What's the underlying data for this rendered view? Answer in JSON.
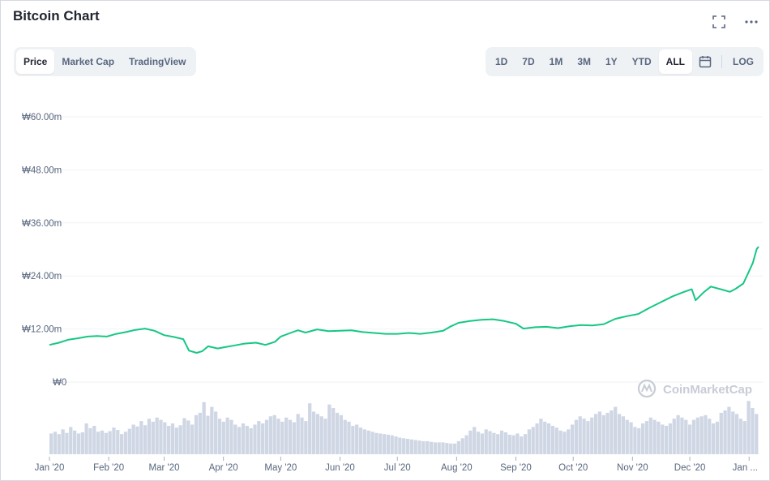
{
  "header": {
    "title": "Bitcoin Chart"
  },
  "icons": {
    "fullscreen": "fullscreen-icon",
    "more": "more-icon",
    "calendar": "calendar-icon",
    "watermark": "coinmarketcap-logo-icon"
  },
  "chart_tabs": [
    {
      "label": "Price",
      "active": true
    },
    {
      "label": "Market Cap",
      "active": false
    },
    {
      "label": "TradingView",
      "active": false
    }
  ],
  "ranges": [
    {
      "label": "1D",
      "active": false
    },
    {
      "label": "7D",
      "active": false
    },
    {
      "label": "1M",
      "active": false
    },
    {
      "label": "3M",
      "active": false
    },
    {
      "label": "1Y",
      "active": false
    },
    {
      "label": "YTD",
      "active": false
    },
    {
      "label": "ALL",
      "active": true
    }
  ],
  "log_label": "LOG",
  "watermark": "CoinMarketCap",
  "colors": {
    "line": "#16c784",
    "volume": "#cfd6e4",
    "grid": "#eff2f5",
    "text": "#58667e"
  },
  "chart_data": {
    "type": "line",
    "title": "",
    "ylabel": "",
    "ylim": [
      0,
      60
    ],
    "yticks": [
      "₩0",
      "₩12.00m",
      "₩24.00m",
      "₩36.00m",
      "₩48.00m",
      "₩60.00m"
    ],
    "ytick_values": [
      0,
      12,
      24,
      36,
      48,
      60
    ],
    "xticks": [
      "Jan '20",
      "Feb '20",
      "Mar '20",
      "Apr '20",
      "May '20",
      "Jun '20",
      "Jul '20",
      "Aug '20",
      "Sep '20",
      "Oct '20",
      "Nov '20",
      "Dec '20",
      "Jan ..."
    ],
    "xtick_days": [
      0,
      31,
      60,
      91,
      121,
      152,
      182,
      213,
      244,
      274,
      305,
      335,
      366
    ],
    "x_end_day": 371,
    "price_series": {
      "name": "Price (KRW, millions)",
      "points": [
        [
          0,
          8.4
        ],
        [
          5,
          8.9
        ],
        [
          10,
          9.6
        ],
        [
          15,
          9.9
        ],
        [
          20,
          10.3
        ],
        [
          25,
          10.4
        ],
        [
          30,
          10.3
        ],
        [
          35,
          10.9
        ],
        [
          40,
          11.3
        ],
        [
          45,
          11.8
        ],
        [
          50,
          12.1
        ],
        [
          55,
          11.6
        ],
        [
          60,
          10.6
        ],
        [
          65,
          10.2
        ],
        [
          70,
          9.7
        ],
        [
          73,
          7.1
        ],
        [
          77,
          6.6
        ],
        [
          80,
          7.0
        ],
        [
          83,
          8.1
        ],
        [
          88,
          7.6
        ],
        [
          92,
          7.9
        ],
        [
          97,
          8.3
        ],
        [
          102,
          8.7
        ],
        [
          108,
          8.9
        ],
        [
          113,
          8.4
        ],
        [
          118,
          9.1
        ],
        [
          121,
          10.3
        ],
        [
          126,
          11.1
        ],
        [
          130,
          11.7
        ],
        [
          134,
          11.2
        ],
        [
          140,
          11.9
        ],
        [
          146,
          11.5
        ],
        [
          152,
          11.6
        ],
        [
          158,
          11.7
        ],
        [
          164,
          11.3
        ],
        [
          170,
          11.1
        ],
        [
          176,
          10.9
        ],
        [
          182,
          10.9
        ],
        [
          188,
          11.1
        ],
        [
          194,
          10.9
        ],
        [
          200,
          11.2
        ],
        [
          206,
          11.6
        ],
        [
          210,
          12.6
        ],
        [
          214,
          13.4
        ],
        [
          220,
          13.8
        ],
        [
          226,
          14.1
        ],
        [
          232,
          14.2
        ],
        [
          238,
          13.8
        ],
        [
          244,
          13.2
        ],
        [
          248,
          12.1
        ],
        [
          254,
          12.4
        ],
        [
          260,
          12.5
        ],
        [
          266,
          12.2
        ],
        [
          272,
          12.6
        ],
        [
          278,
          12.9
        ],
        [
          284,
          12.8
        ],
        [
          290,
          13.1
        ],
        [
          296,
          14.3
        ],
        [
          302,
          14.9
        ],
        [
          308,
          15.4
        ],
        [
          314,
          16.8
        ],
        [
          320,
          18.1
        ],
        [
          326,
          19.4
        ],
        [
          332,
          20.4
        ],
        [
          336,
          21.0
        ],
        [
          338,
          18.5
        ],
        [
          342,
          20.2
        ],
        [
          346,
          21.6
        ],
        [
          352,
          20.9
        ],
        [
          356,
          20.4
        ],
        [
          359,
          21.1
        ],
        [
          363,
          22.3
        ],
        [
          366,
          25.1
        ],
        [
          368,
          27.0
        ],
        [
          370,
          30.1
        ],
        [
          371,
          30.6
        ]
      ]
    },
    "volume_series": {
      "name": "Volume (relative)",
      "values": [
        0.35,
        0.38,
        0.34,
        0.42,
        0.36,
        0.46,
        0.4,
        0.35,
        0.37,
        0.52,
        0.44,
        0.48,
        0.38,
        0.4,
        0.36,
        0.39,
        0.45,
        0.41,
        0.34,
        0.38,
        0.43,
        0.5,
        0.47,
        0.56,
        0.49,
        0.6,
        0.55,
        0.62,
        0.58,
        0.54,
        0.48,
        0.52,
        0.45,
        0.49,
        0.61,
        0.57,
        0.5,
        0.66,
        0.7,
        0.88,
        0.65,
        0.8,
        0.72,
        0.6,
        0.55,
        0.62,
        0.58,
        0.5,
        0.46,
        0.52,
        0.48,
        0.44,
        0.5,
        0.56,
        0.52,
        0.58,
        0.64,
        0.66,
        0.6,
        0.55,
        0.62,
        0.58,
        0.54,
        0.68,
        0.62,
        0.56,
        0.86,
        0.72,
        0.68,
        0.64,
        0.6,
        0.84,
        0.78,
        0.7,
        0.66,
        0.58,
        0.55,
        0.48,
        0.5,
        0.45,
        0.42,
        0.4,
        0.38,
        0.36,
        0.35,
        0.34,
        0.33,
        0.32,
        0.3,
        0.28,
        0.27,
        0.26,
        0.25,
        0.24,
        0.23,
        0.22,
        0.22,
        0.21,
        0.2,
        0.2,
        0.2,
        0.19,
        0.18,
        0.18,
        0.22,
        0.27,
        0.32,
        0.4,
        0.46,
        0.38,
        0.35,
        0.42,
        0.39,
        0.36,
        0.34,
        0.4,
        0.37,
        0.33,
        0.32,
        0.35,
        0.3,
        0.34,
        0.42,
        0.46,
        0.52,
        0.6,
        0.55,
        0.52,
        0.48,
        0.45,
        0.4,
        0.38,
        0.42,
        0.5,
        0.58,
        0.64,
        0.6,
        0.56,
        0.62,
        0.68,
        0.72,
        0.66,
        0.7,
        0.74,
        0.8,
        0.68,
        0.64,
        0.58,
        0.54,
        0.46,
        0.44,
        0.52,
        0.56,
        0.62,
        0.58,
        0.55,
        0.5,
        0.48,
        0.52,
        0.6,
        0.66,
        0.62,
        0.58,
        0.5,
        0.58,
        0.62,
        0.64,
        0.66,
        0.6,
        0.52,
        0.55,
        0.7,
        0.74,
        0.8,
        0.72,
        0.68,
        0.6,
        0.56,
        0.9,
        0.78,
        0.68
      ]
    }
  }
}
